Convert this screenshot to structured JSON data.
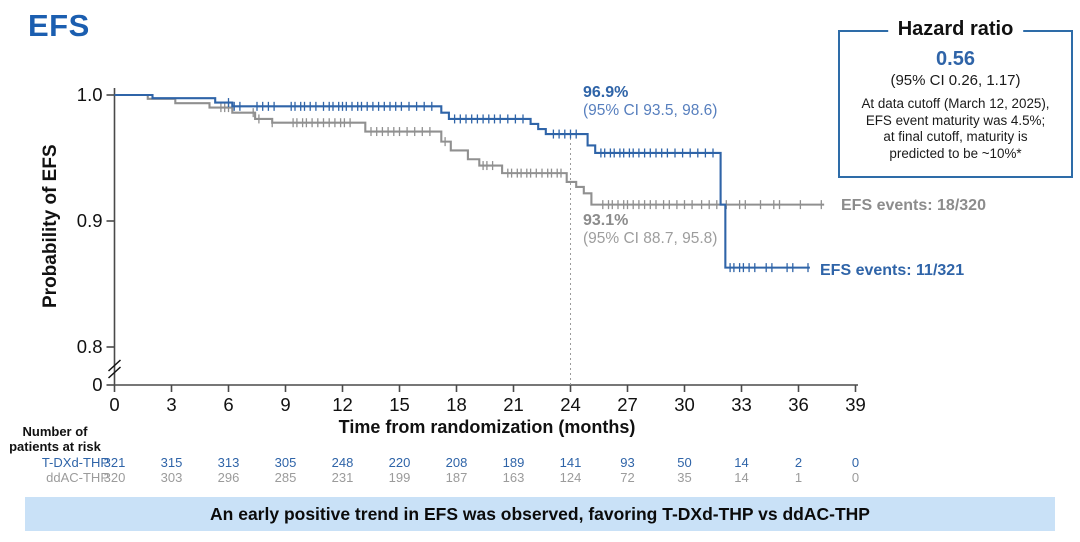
{
  "title": "EFS",
  "colors": {
    "brand_blue": "#2f64a8",
    "title_blue": "#1b5eb0",
    "gray": "#8c8c8c",
    "axis": "#4a4a4a",
    "banner_bg": "#c9e1f7",
    "box_border": "#2e6ca8"
  },
  "hazard_box": {
    "title": "Hazard ratio",
    "value": "0.56",
    "ci": "(95% CI 0.26, 1.17)",
    "note_lines": [
      "At data cutoff (March 12, 2025),",
      "EFS event maturity was 4.5%;",
      "at final cutoff, maturity is",
      "predicted to be ~10%*"
    ]
  },
  "annotations": {
    "tdxd_pct": "96.9%",
    "tdxd_ci": "(95% CI 93.5, 98.6)",
    "ddac_pct": "93.1%",
    "ddac_ci": "(95% CI 88.7, 95.8)",
    "tdxd_events": "EFS events: 11/321",
    "ddac_events": "EFS events: 18/320"
  },
  "chart_data": {
    "type": "line",
    "subtype": "kaplan-meier-step",
    "title": "EFS",
    "xlabel": "Time from randomization (months)",
    "ylabel": "Probability of EFS",
    "xticks": [
      0,
      3,
      6,
      9,
      12,
      15,
      18,
      21,
      24,
      27,
      30,
      33,
      36,
      39
    ],
    "ytick_labels": [
      "1.0",
      "0.9",
      "0.8",
      "0"
    ],
    "ytick_values": [
      1.0,
      0.9,
      0.8,
      0
    ],
    "xlim": [
      0,
      39
    ],
    "axis_break_y": true,
    "grid": false,
    "reference_line_x": 24,
    "series": [
      {
        "name": "ddAC-THP",
        "color": "#909090",
        "landmark_24mo": "93.1%",
        "landmark_ci": "(95% CI 88.7, 95.8)",
        "events": "18/320",
        "end_t": 37.35,
        "steps": [
          [
            0,
            1.0
          ],
          [
            1.75,
            0.997
          ],
          [
            3.2,
            0.9935
          ],
          [
            5.0,
            0.99
          ],
          [
            6.2,
            0.986
          ],
          [
            7.4,
            0.981
          ],
          [
            8.3,
            0.978
          ],
          [
            13.2,
            0.971
          ],
          [
            17.2,
            0.963
          ],
          [
            17.7,
            0.956
          ],
          [
            18.6,
            0.949
          ],
          [
            19.2,
            0.944
          ],
          [
            20.4,
            0.938
          ],
          [
            23.8,
            0.931
          ],
          [
            24.3,
            0.927
          ],
          [
            24.7,
            0.922
          ],
          [
            25.1,
            0.913
          ]
        ],
        "censor_times": [
          5.6,
          5.8,
          6.0,
          7.3,
          7.6,
          8.3,
          9.4,
          9.6,
          9.9,
          10.1,
          10.4,
          10.7,
          11.0,
          11.3,
          11.6,
          11.9,
          12.1,
          12.4,
          13.5,
          13.8,
          14.1,
          14.4,
          14.7,
          15.0,
          15.4,
          15.8,
          16.2,
          16.6,
          17.4,
          19.4,
          19.6,
          19.9,
          20.7,
          20.9,
          21.2,
          21.4,
          21.7,
          21.9,
          22.2,
          22.5,
          22.8,
          23.0,
          23.3,
          23.5,
          25.7,
          26.0,
          26.2,
          26.5,
          26.8,
          27.0,
          27.3,
          27.6,
          27.9,
          28.2,
          28.5,
          28.9,
          29.2,
          29.6,
          30.0,
          30.4,
          30.9,
          31.3,
          31.7,
          32.2,
          32.9,
          33.2,
          34.0,
          34.7,
          35.0,
          36.1,
          37.2
        ]
      },
      {
        "name": "T-DXd-THP",
        "color": "#2f64a8",
        "landmark_24mo": "96.9%",
        "landmark_ci": "(95% CI 93.5, 98.6)",
        "events": "11/321",
        "end_t": 36.6,
        "steps": [
          [
            0,
            1.0
          ],
          [
            2.0,
            0.9975
          ],
          [
            5.3,
            0.994
          ],
          [
            6.2,
            0.991
          ],
          [
            17.2,
            0.986
          ],
          [
            17.6,
            0.981
          ],
          [
            21.9,
            0.977
          ],
          [
            22.3,
            0.973
          ],
          [
            22.7,
            0.969
          ],
          [
            24.9,
            0.96
          ],
          [
            25.3,
            0.954
          ],
          [
            31.9,
            0.913
          ],
          [
            32.15,
            0.863
          ]
        ],
        "censor_times": [
          6.0,
          6.3,
          6.6,
          7.5,
          7.8,
          8.1,
          8.4,
          9.3,
          9.5,
          9.8,
          10.0,
          10.3,
          10.6,
          11.0,
          11.3,
          11.5,
          11.8,
          12.0,
          12.2,
          12.5,
          12.8,
          13.0,
          13.3,
          13.6,
          13.9,
          14.2,
          14.5,
          14.8,
          15.1,
          15.5,
          15.9,
          16.3,
          16.7,
          17.9,
          18.2,
          18.5,
          18.8,
          19.1,
          19.4,
          19.7,
          20.0,
          20.3,
          20.7,
          21.1,
          21.5,
          23.1,
          23.4,
          23.7,
          24.0,
          24.3,
          25.6,
          25.8,
          26.1,
          26.3,
          26.6,
          26.8,
          27.1,
          27.3,
          27.6,
          27.9,
          28.2,
          28.5,
          28.8,
          29.1,
          29.5,
          29.9,
          30.3,
          30.7,
          31.1,
          31.5,
          32.4,
          32.6,
          32.9,
          33.1,
          33.4,
          33.7,
          34.3,
          34.6,
          35.4,
          35.7,
          36.5
        ]
      }
    ]
  },
  "risk_table": {
    "header_line1": "Number of",
    "header_line2": "patients at risk",
    "rows": [
      {
        "name": "T-DXd-THP",
        "color": "#2f64a8",
        "values": [
          "321",
          "315",
          "313",
          "305",
          "248",
          "220",
          "208",
          "189",
          "141",
          "93",
          "50",
          "14",
          "2",
          "0"
        ]
      },
      {
        "name": "ddAC-THP",
        "color": "#9b9b9b",
        "values": [
          "320",
          "303",
          "296",
          "285",
          "231",
          "199",
          "187",
          "163",
          "124",
          "72",
          "35",
          "14",
          "1",
          "0"
        ]
      }
    ]
  },
  "banner": "An early positive trend in EFS was observed, favoring T-DXd-THP vs ddAC-THP"
}
